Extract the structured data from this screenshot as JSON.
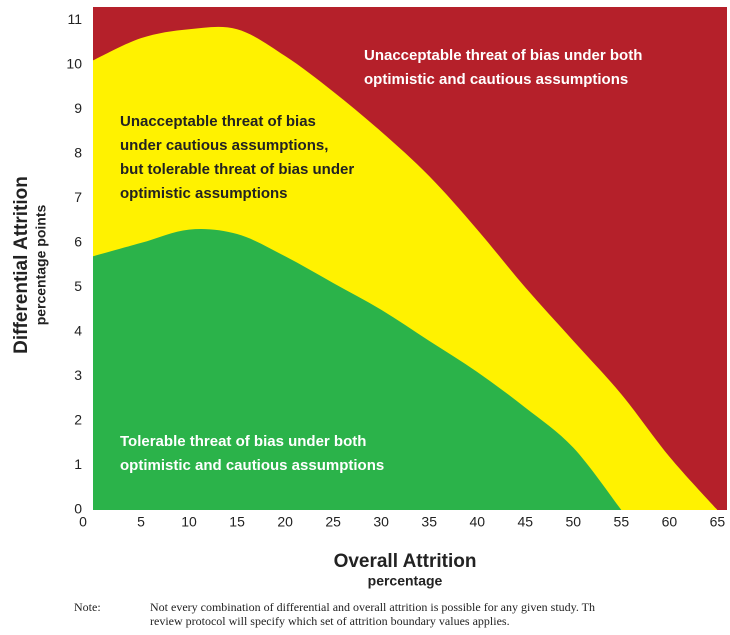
{
  "chart_data": {
    "type": "area",
    "x": [
      0,
      5,
      10,
      15,
      20,
      25,
      30,
      35,
      40,
      45,
      50,
      55,
      60,
      65
    ],
    "series": [
      {
        "color": "#fff200",
        "values": [
          10.1,
          10.6,
          10.8,
          10.8,
          10.2,
          9.4,
          8.5,
          7.5,
          6.3,
          5.0,
          3.8,
          2.6,
          1.2,
          0
        ]
      },
      {
        "color": "#2bb34a",
        "values": [
          5.7,
          6.0,
          6.3,
          6.2,
          5.7,
          5.1,
          4.5,
          3.8,
          3.1,
          2.3,
          1.4,
          0,
          null,
          null
        ]
      }
    ],
    "background_color": "#b5202a",
    "xlim": [
      0,
      66
    ],
    "ylim": [
      0,
      11.3
    ],
    "xticks": [
      0,
      5,
      10,
      15,
      20,
      25,
      30,
      35,
      40,
      45,
      50,
      55,
      60,
      65
    ],
    "yticks": [
      0,
      1,
      2,
      3,
      4,
      5,
      6,
      7,
      8,
      9,
      10,
      11
    ],
    "x_label": "Overall Attrition",
    "x_sublabel": "percentage",
    "y_label": "Differential Attrition",
    "y_sublabel": "percentage points",
    "annotations": [
      [
        "Unacceptable threat of bias under both",
        "optimistic and cautious assumptions"
      ],
      [
        "Unacceptable threat of bias",
        "under cautious assumptions,",
        "but tolerable threat of bias under",
        "optimistic assumptions"
      ],
      [
        "Tolerable threat of bias under both",
        "optimistic and cautious assumptions"
      ]
    ],
    "note_label": "Note:",
    "note_lines": [
      "Not every combination of differential and overall attrition is possible for any given study. Th",
      "review protocol will specify which set of attrition boundary values applies."
    ]
  }
}
